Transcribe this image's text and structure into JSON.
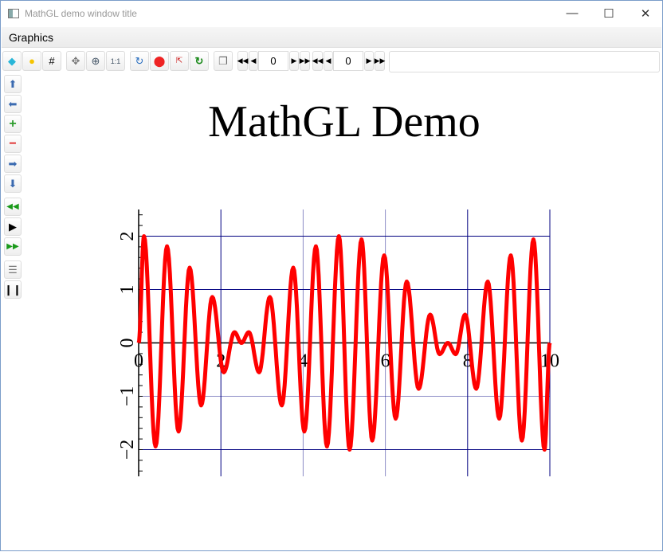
{
  "window": {
    "title": "MathGL demo window title",
    "minimize_icon": "minimize",
    "maximize_icon": "maximize",
    "close_icon": "close"
  },
  "menu": {
    "items": [
      "Graphics"
    ]
  },
  "toolbar": {
    "buttons": [
      "alpha-diamond",
      "light-bulb",
      "grid",
      "rotate-move",
      "zoom-in",
      "zoom-reset",
      "redraw",
      "stop",
      "fit-screen",
      "refresh",
      "copy"
    ],
    "frame_value": "0",
    "slice_value": "0"
  },
  "left_toolbar": {
    "buttons": [
      "arrow-up",
      "arrow-left",
      "plus",
      "minus",
      "arrow-right",
      "arrow-down",
      "prev-frame",
      "play",
      "next-frame",
      "settings",
      "pause"
    ]
  },
  "chart_data": {
    "type": "line",
    "title": "MathGL Demo",
    "xlim": [
      0,
      10
    ],
    "ylim": [
      -2.5,
      2.5
    ],
    "grid": true,
    "x_ticks": [
      "0",
      "2",
      "4",
      "6",
      "8",
      "10"
    ],
    "y_ticks": [
      "2",
      "1",
      "0",
      "−1",
      "−2"
    ],
    "line_color": "#ff0000",
    "grid_color": "#000080",
    "series": [
      {
        "x": [
          0,
          0.13,
          0.41,
          0.69,
          0.97,
          1.24,
          1.52,
          1.79,
          2.07,
          2.33,
          2.5,
          2.68,
          2.93,
          3.19,
          3.48,
          3.76,
          4.03,
          4.31,
          4.58,
          4.87,
          5.13,
          5.42,
          5.68,
          5.97,
          6.25,
          6.52,
          6.81,
          7.09,
          7.32,
          7.52,
          7.71,
          7.94,
          8.21,
          8.49,
          8.77,
          9.05,
          9.32,
          9.6,
          9.87,
          10
        ],
        "y": [
          0,
          2.0,
          -1.94,
          1.81,
          -1.66,
          1.41,
          -1.17,
          0.86,
          -0.55,
          0.2,
          0.0,
          0.2,
          -0.55,
          0.86,
          -1.17,
          1.41,
          -1.66,
          1.81,
          -1.94,
          2.0,
          -2.0,
          1.94,
          -1.83,
          1.64,
          -1.42,
          1.15,
          -0.86,
          0.53,
          -0.21,
          0.0,
          -0.21,
          0.53,
          -0.86,
          1.15,
          -1.42,
          1.64,
          -1.83,
          1.94,
          -2.0,
          0
        ]
      }
    ]
  }
}
